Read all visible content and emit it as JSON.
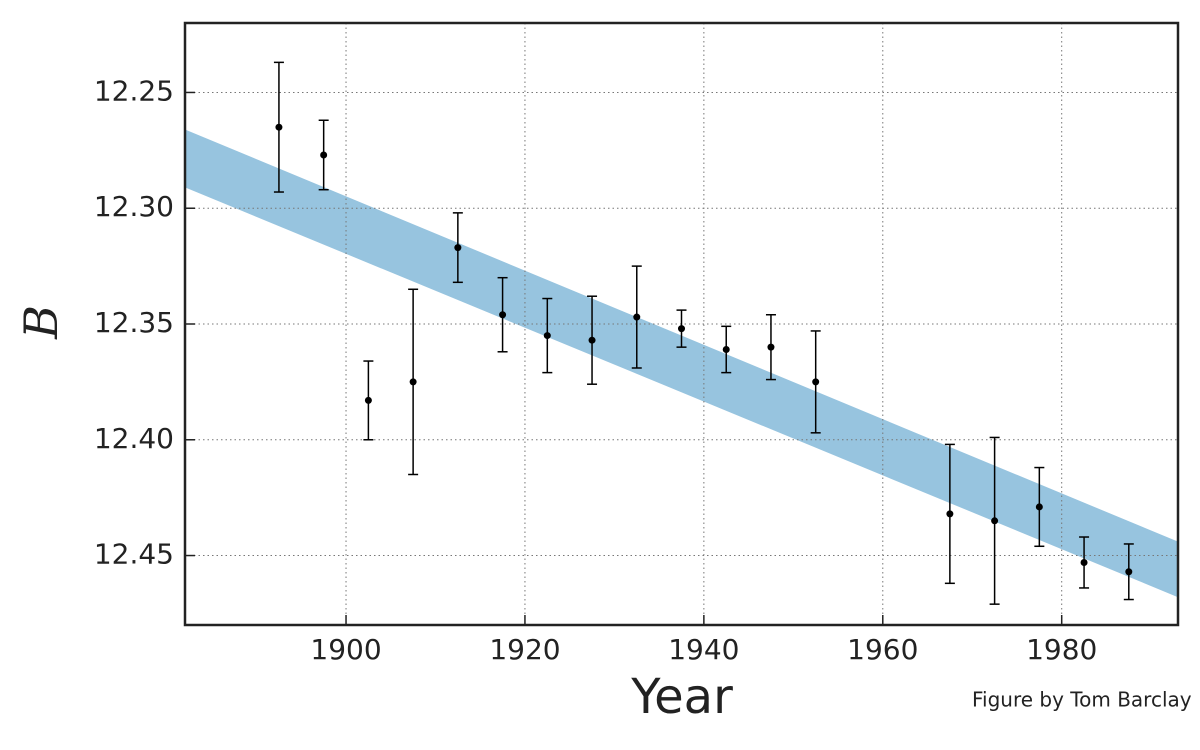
{
  "chart_data": {
    "type": "scatter",
    "x_label": "Year",
    "y_label": "B",
    "credit": "Figure by Tom Barclay",
    "xlim": [
      1882,
      1993
    ],
    "ylim": [
      12.48,
      12.22
    ],
    "xticks": [
      1900,
      1920,
      1940,
      1960,
      1980
    ],
    "yticks": [
      12.45,
      12.4,
      12.35,
      12.3,
      12.25
    ],
    "ytick_labels": [
      "12.45",
      "12.40",
      "12.35",
      "12.30",
      "12.25"
    ],
    "grid": true,
    "band": {
      "x": [
        1882,
        1993
      ],
      "lower": [
        12.266,
        12.444
      ],
      "upper": [
        12.291,
        12.468
      ],
      "color": "#97c4df"
    },
    "series": [
      {
        "color": "#000000",
        "x": [
          1892.5,
          1897.5,
          1902.5,
          1907.5,
          1912.5,
          1917.5,
          1922.5,
          1927.5,
          1932.5,
          1937.5,
          1942.5,
          1947.5,
          1952.5,
          1967.5,
          1972.5,
          1977.5,
          1982.5,
          1987.5
        ],
        "y": [
          12.265,
          12.277,
          12.383,
          12.375,
          12.317,
          12.346,
          12.355,
          12.357,
          12.347,
          12.352,
          12.361,
          12.36,
          12.375,
          12.432,
          12.435,
          12.429,
          12.453,
          12.457
        ],
        "yerr": [
          0.028,
          0.015,
          0.017,
          0.04,
          0.015,
          0.016,
          0.016,
          0.019,
          0.022,
          0.008,
          0.01,
          0.014,
          0.022,
          0.03,
          0.036,
          0.017,
          0.011,
          0.012
        ]
      }
    ]
  }
}
